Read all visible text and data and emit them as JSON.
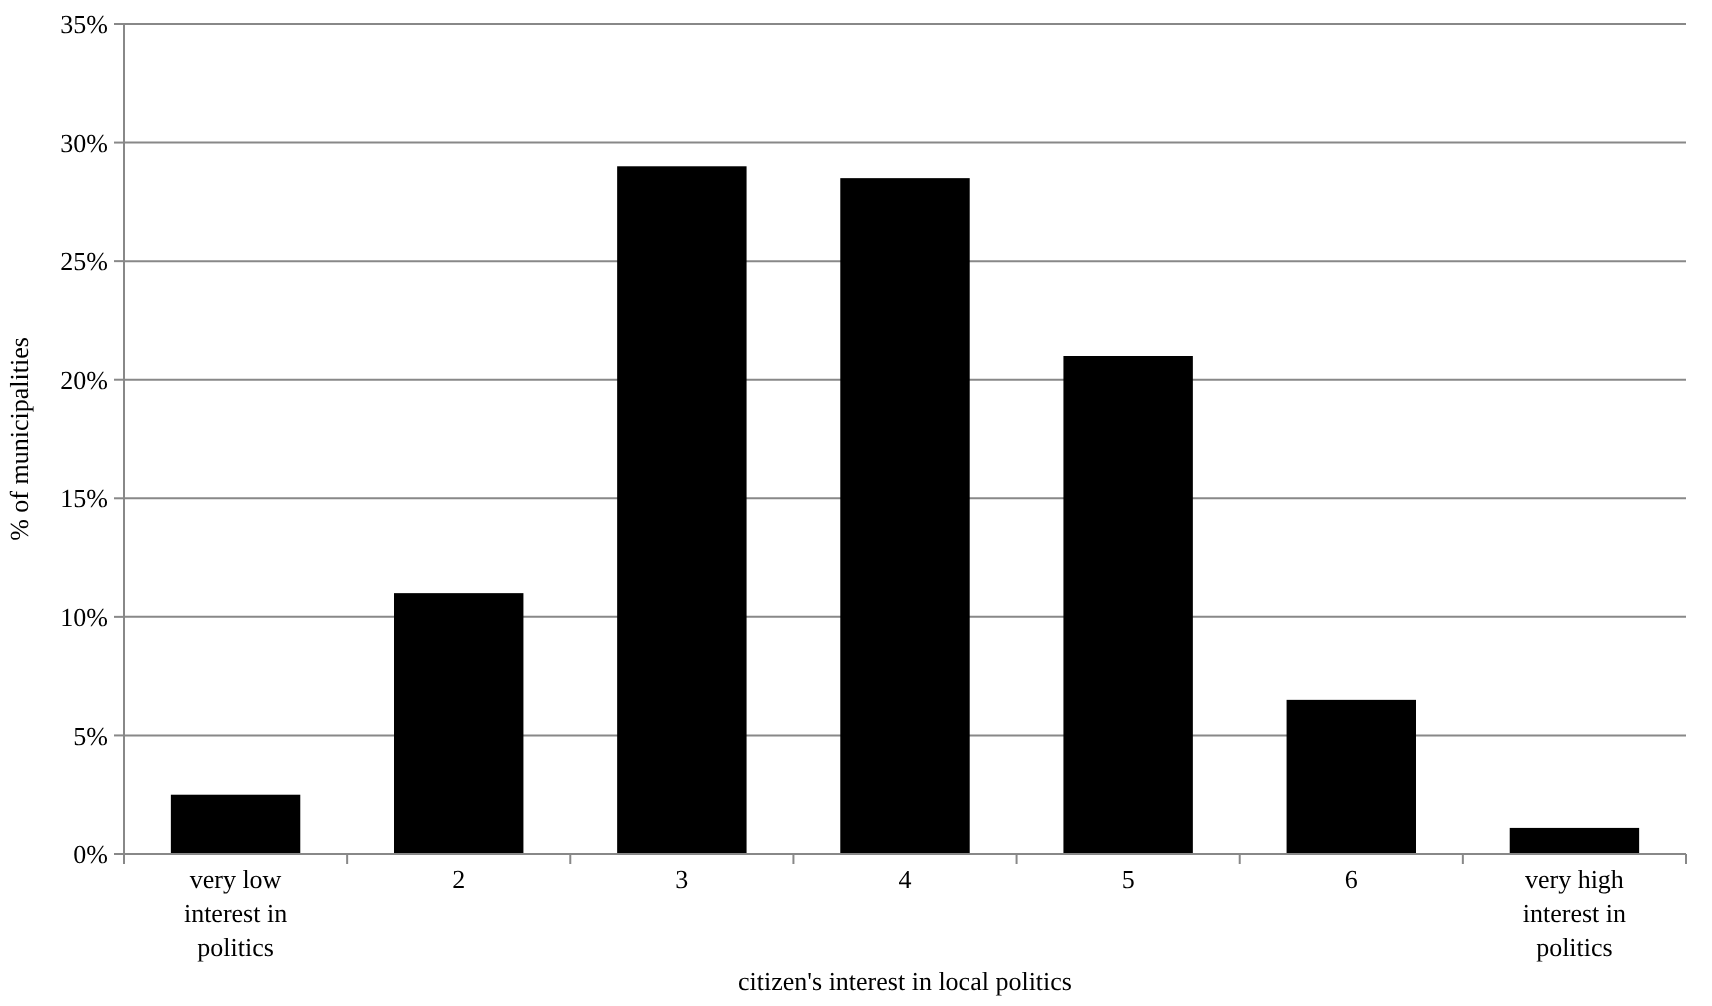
{
  "chart_data": {
    "type": "bar",
    "xlabel": "citizen's interest in local politics",
    "ylabel": "% of municipalities",
    "categories": [
      "very low interest in politics",
      "2",
      "3",
      "4",
      "5",
      "6",
      "very high interest in politics"
    ],
    "values": [
      2.5,
      11,
      29,
      28.5,
      21,
      6.5,
      1.1
    ],
    "color": "#000000",
    "ylim": [
      0,
      35
    ],
    "yticks": [
      {
        "value": 0,
        "label": "0%"
      },
      {
        "value": 5,
        "label": "5%"
      },
      {
        "value": 10,
        "label": "10%"
      },
      {
        "value": 15,
        "label": "15%"
      },
      {
        "value": 20,
        "label": "20%"
      },
      {
        "value": 25,
        "label": "25%"
      },
      {
        "value": 30,
        "label": "30%"
      },
      {
        "value": 35,
        "label": "35%"
      }
    ],
    "grid": "y"
  }
}
